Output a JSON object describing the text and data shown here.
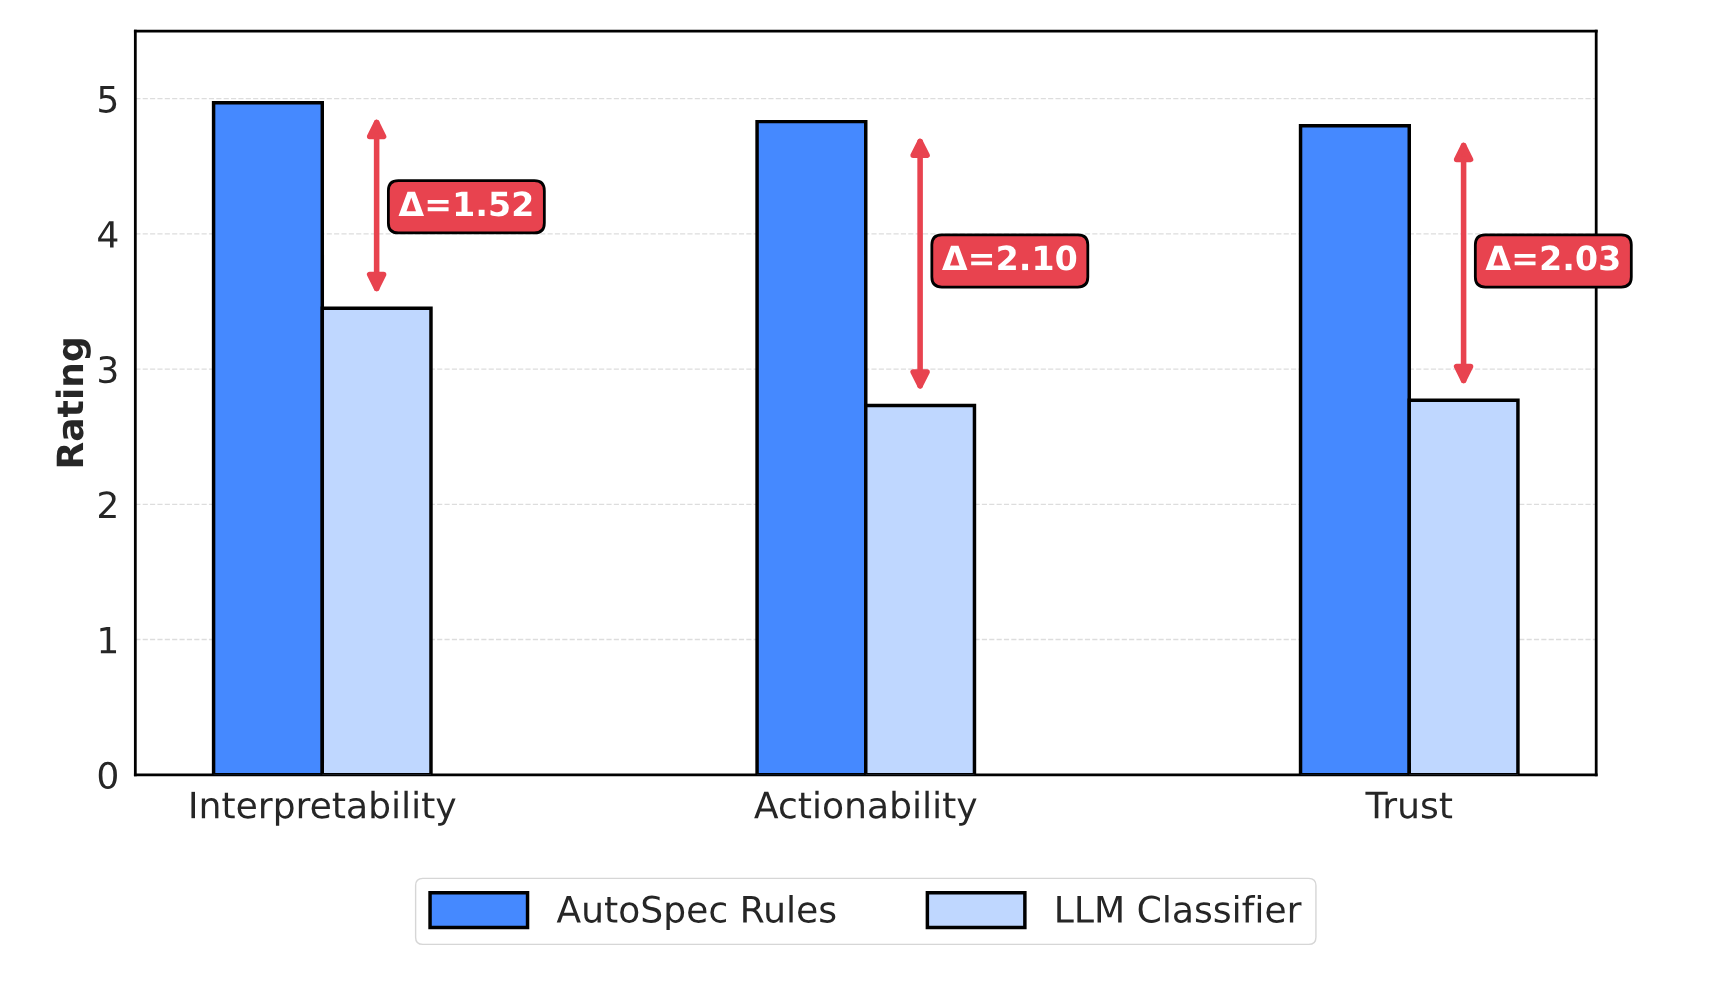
{
  "chart_data": {
    "type": "bar",
    "ylabel": "Rating",
    "categories": [
      "Interpretability",
      "Actionability",
      "Trust"
    ],
    "series": [
      {
        "name": "AutoSpec Rules",
        "color": "#4589ff",
        "values": [
          4.97,
          4.83,
          4.8
        ]
      },
      {
        "name": "LLM Classifier",
        "color": "#bfd7ff",
        "values": [
          3.45,
          2.73,
          2.77
        ]
      }
    ],
    "annotations": [
      {
        "text": "Δ=1.52",
        "x": "Interpretability",
        "y": 4.2
      },
      {
        "text": "Δ=2.10",
        "x": "Actionability",
        "y": 3.8
      },
      {
        "text": "Δ=2.03",
        "x": "Trust",
        "y": 3.8
      }
    ],
    "ylim": [
      0,
      5.5
    ],
    "yticks": [
      0,
      1,
      2,
      3,
      4,
      5
    ],
    "grid": "y",
    "legend": "bottom"
  }
}
